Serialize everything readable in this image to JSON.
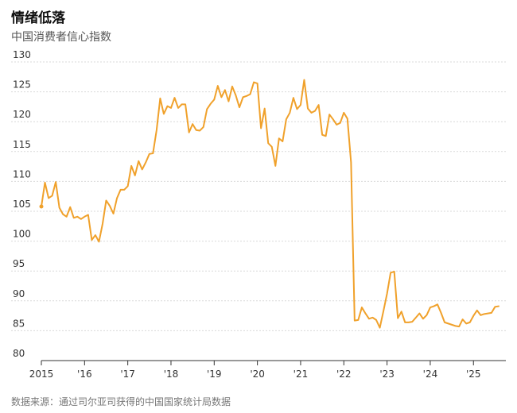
{
  "title": "情绪低落",
  "subtitle": "中国消费者信心指数",
  "source": "数据来源：通过司尔亚司获得的中国国家统计局数据",
  "colors": {
    "line": "#f0a12b",
    "grid": "#d9d9d9",
    "text": "#333333"
  },
  "chart_data": {
    "type": "line",
    "x_unit": "year",
    "xlim": [
      2015.0,
      2025.75
    ],
    "ylim": [
      80,
      130
    ],
    "y_ticks": [
      80,
      85,
      90,
      95,
      100,
      105,
      110,
      115,
      120,
      125,
      130
    ],
    "x_ticks": [
      {
        "value": 2015,
        "label": "2015"
      },
      {
        "value": 2016,
        "label": "'16"
      },
      {
        "value": 2017,
        "label": "'17"
      },
      {
        "value": 2018,
        "label": "'18"
      },
      {
        "value": 2019,
        "label": "'19"
      },
      {
        "value": 2020,
        "label": "'20"
      },
      {
        "value": 2021,
        "label": "'21"
      },
      {
        "value": 2022,
        "label": "'22"
      },
      {
        "value": 2023,
        "label": "'23"
      },
      {
        "value": 2024,
        "label": "'24"
      },
      {
        "value": 2025,
        "label": "'25"
      }
    ],
    "grid": "horizontal",
    "series": [
      {
        "x": [
          2015.0,
          2015.083,
          2015.167,
          2015.25,
          2015.333,
          2015.417,
          2015.5,
          2015.583,
          2015.667,
          2015.75,
          2015.833,
          2015.917,
          2016.0,
          2016.083,
          2016.167,
          2016.25,
          2016.333,
          2016.417,
          2016.5,
          2016.583,
          2016.667,
          2016.75,
          2016.833,
          2016.917,
          2017.0,
          2017.083,
          2017.167,
          2017.25,
          2017.333,
          2017.417,
          2017.5,
          2017.583,
          2017.667,
          2017.75,
          2017.833,
          2017.917,
          2018.0,
          2018.083,
          2018.167,
          2018.25,
          2018.333,
          2018.417,
          2018.5,
          2018.583,
          2018.667,
          2018.75,
          2018.833,
          2018.917,
          2019.0,
          2019.083,
          2019.167,
          2019.25,
          2019.333,
          2019.417,
          2019.5,
          2019.583,
          2019.667,
          2019.75,
          2019.833,
          2019.917,
          2020.0,
          2020.083,
          2020.167,
          2020.25,
          2020.333,
          2020.417,
          2020.5,
          2020.583,
          2020.667,
          2020.75,
          2020.833,
          2020.917,
          2021.0,
          2021.083,
          2021.167,
          2021.25,
          2021.333,
          2021.417,
          2021.5,
          2021.583,
          2021.667,
          2021.75,
          2021.833,
          2021.917,
          2022.0,
          2022.083,
          2022.167,
          2022.25,
          2022.333,
          2022.417,
          2022.5,
          2022.583,
          2022.667,
          2022.75,
          2022.833,
          2022.917,
          2023.0,
          2023.083,
          2023.167,
          2023.25,
          2023.333,
          2023.417,
          2023.5,
          2023.583,
          2023.667,
          2023.75,
          2023.833,
          2023.917,
          2024.0,
          2024.083,
          2024.167,
          2024.25,
          2024.333,
          2024.417,
          2024.5,
          2024.583,
          2024.667,
          2024.75,
          2024.833,
          2024.917,
          2025.0,
          2025.083,
          2025.167,
          2025.25,
          2025.333,
          2025.417,
          2025.5,
          2025.583
        ],
        "values": [
          105.8,
          109.8,
          107.2,
          107.6,
          109.9,
          105.6,
          104.5,
          104.1,
          105.7,
          103.9,
          104.1,
          103.7,
          104.1,
          104.4,
          100.2,
          101.0,
          99.9,
          102.9,
          106.8,
          105.9,
          104.6,
          107.2,
          108.6,
          108.6,
          109.2,
          112.6,
          111.0,
          113.4,
          112.0,
          113.2,
          114.6,
          114.7,
          118.6,
          123.9,
          121.3,
          122.6,
          122.3,
          124.0,
          122.3,
          122.9,
          122.9,
          118.2,
          119.6,
          118.6,
          118.5,
          119.1,
          122.1,
          123.0,
          123.7,
          126.0,
          124.1,
          125.3,
          123.4,
          125.9,
          124.4,
          122.4,
          124.1,
          124.3,
          124.6,
          126.6,
          126.4,
          118.9,
          122.2,
          116.4,
          115.8,
          112.6,
          117.2,
          116.7,
          120.4,
          121.5,
          124.0,
          122.1,
          122.8,
          127.0,
          122.2,
          121.5,
          121.8,
          122.8,
          117.8,
          117.6,
          121.2,
          120.4,
          119.5,
          119.8,
          121.5,
          120.5,
          113.2,
          86.7,
          86.8,
          88.9,
          87.9,
          87.0,
          87.2,
          86.8,
          85.5,
          88.3,
          91.2,
          94.7,
          94.9,
          87.1,
          88.2,
          86.4,
          86.4,
          86.5,
          87.2,
          87.9,
          87.0,
          87.6,
          88.9,
          89.1,
          89.4,
          88.0,
          86.4,
          86.2,
          86.0,
          85.8,
          85.7,
          86.9,
          86.2,
          86.4,
          87.5,
          88.4,
          87.6,
          87.8,
          87.9,
          88.0,
          89.0,
          89.1
        ]
      }
    ]
  }
}
